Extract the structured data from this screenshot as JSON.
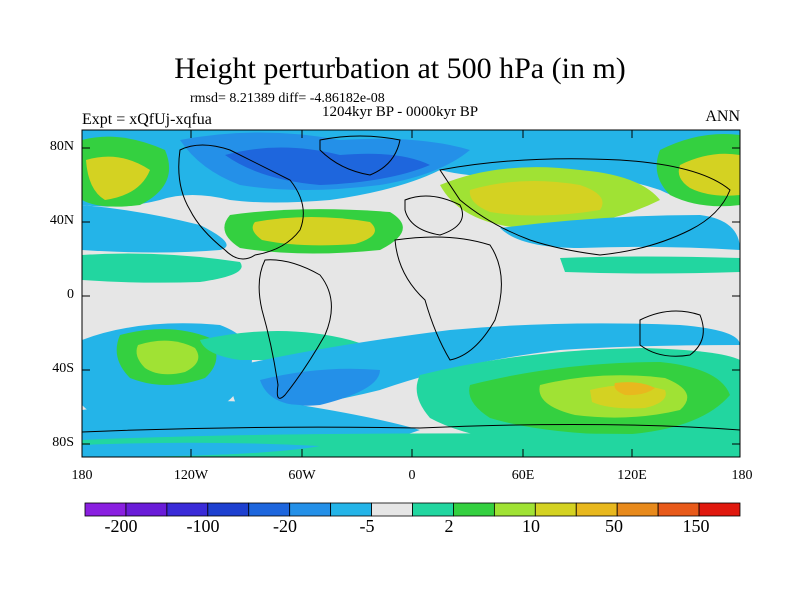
{
  "map": {
    "title": "Height perturbation at 500 hPa (in m)",
    "stats_text": "rmsd= 8.21389  diff= -4.86182e-08",
    "subtitle": "1204kyr BP - 0000kyr BP",
    "left_label": "Expt = xQfUj-xqfua",
    "right_label": "ANN",
    "lat_labels": [
      "80N",
      "40N",
      "0",
      "40S",
      "80S"
    ],
    "lon_labels": [
      "180",
      "120W",
      "60W",
      "0",
      "60E",
      "120E",
      "180"
    ]
  },
  "colorbar": {
    "colors": [
      "#8a1fe0",
      "#6a1cd8",
      "#3a2bd8",
      "#1e40d0",
      "#1e66dd",
      "#2490e8",
      "#24b4e8",
      "#e6e6e6",
      "#22d6a0",
      "#34d040",
      "#a0e234",
      "#d4d222",
      "#e8b81e",
      "#e88a1c",
      "#e85a1a",
      "#e0180e"
    ],
    "tick_labels": [
      "-200",
      "-100",
      "-20",
      "-5",
      "2",
      "10",
      "50",
      "150"
    ]
  }
}
